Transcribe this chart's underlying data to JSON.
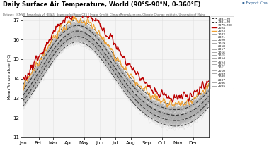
{
  "title": "Daily Surface Air Temperature, World (90°S-90°N, 0-360°E)",
  "subtitle": "Dataset: ECMWF Reanalysis v5 (ERA5) downloaded from C3S | Image Credit: ClimateReanalyzer.org, Climate Change Institute, University of Maine",
  "ylabel": "Mean Temperature (°C)",
  "background_color": "#ffffff",
  "plot_bg_color": "#f5f5f5",
  "ylim": [
    11.0,
    17.2
  ],
  "yticks": [
    11,
    12,
    13,
    14,
    15,
    16,
    17
  ],
  "months": [
    "Jan",
    "Feb",
    "Mar",
    "Apr",
    "May",
    "Jun",
    "Jul",
    "Aug",
    "Sep",
    "Oct",
    "Nov",
    "Dec"
  ],
  "color_2024": "#bb0000",
  "color_2023": "#f0a030",
  "export_color": "#336699"
}
